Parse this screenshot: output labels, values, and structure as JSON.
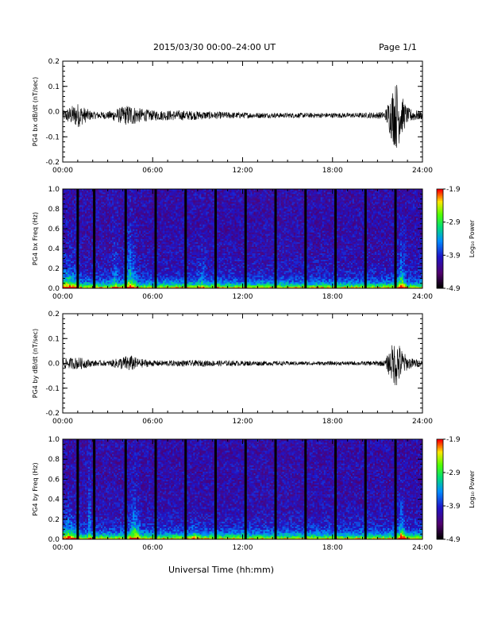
{
  "header": {
    "title": "2015/03/30  00:00–24:00 UT",
    "page": "Page 1/1"
  },
  "xlabel": "Universal Time (hh:mm)",
  "x_ticks": [
    "00:00",
    "06:00",
    "12:00",
    "18:00",
    "24:00"
  ],
  "colorbar": {
    "label": "Log₁₀ Power",
    "ticks": [
      "-1.9",
      "-2.9",
      "-3.9",
      "-4.9"
    ],
    "range": [
      -4.9,
      -1.9
    ]
  },
  "chart_data": [
    {
      "type": "line",
      "ylabel": "PG4 bx dB/dt (nT/sec)",
      "ylim": [
        -0.2,
        0.2
      ],
      "y_ticks": [
        "0.2",
        "0.1",
        "0.0",
        "-0.1",
        "-0.2"
      ],
      "xlim": [
        0,
        24
      ],
      "x": [
        0,
        1,
        1.5,
        2,
        3,
        4.5,
        5,
        6,
        8,
        10,
        12,
        14,
        16,
        18,
        20,
        21.5,
        22,
        22.3,
        22.6,
        23,
        24
      ],
      "envelope": [
        0.02,
        0.05,
        0.03,
        0.015,
        0.015,
        0.045,
        0.03,
        0.02,
        0.02,
        0.015,
        0.012,
        0.01,
        0.01,
        0.01,
        0.01,
        0.015,
        0.11,
        0.14,
        0.08,
        0.03,
        0.015
      ],
      "baseline": -0.015
    },
    {
      "type": "heatmap",
      "ylabel": "PG4 bx Freq (Hz)",
      "ylim": [
        0,
        1.0
      ],
      "y_ticks": [
        "1.0",
        "0.8",
        "0.6",
        "0.4",
        "0.2",
        "0.0"
      ],
      "xlim": [
        0,
        24
      ],
      "gap_hours": [
        1.0,
        2.1,
        4.2,
        6.2,
        8.2,
        10.2,
        12.2,
        14.2,
        16.2,
        18.2,
        20.2,
        22.2
      ],
      "bursts": [
        {
          "x": 0.4,
          "w": 0.9,
          "f": 0.35,
          "p": 1.0
        },
        {
          "x": 4.5,
          "w": 0.5,
          "f": 0.55,
          "p": 1.2
        },
        {
          "x": 3.5,
          "w": 0.3,
          "f": 0.7,
          "p": 0.6
        },
        {
          "x": 9.3,
          "w": 0.4,
          "f": 0.5,
          "p": 0.5
        },
        {
          "x": 10.3,
          "w": 0.3,
          "f": 0.25,
          "p": 0.4
        },
        {
          "x": 22.6,
          "w": 0.35,
          "f": 0.45,
          "p": 1.3
        }
      ]
    },
    {
      "type": "line",
      "ylabel": "PG4 by dB/dt (nT/sec)",
      "ylim": [
        -0.2,
        0.2
      ],
      "y_ticks": [
        "0.2",
        "0.1",
        "0.0",
        "-0.1",
        "-0.2"
      ],
      "xlim": [
        0,
        24
      ],
      "x": [
        0,
        1,
        1.5,
        2,
        3,
        4.5,
        5,
        6,
        8,
        10,
        12,
        14,
        16,
        18,
        20,
        21.5,
        22,
        22.3,
        22.6,
        23,
        24
      ],
      "envelope": [
        0.02,
        0.025,
        0.02,
        0.012,
        0.01,
        0.035,
        0.02,
        0.012,
        0.012,
        0.012,
        0.01,
        0.009,
        0.008,
        0.008,
        0.008,
        0.012,
        0.08,
        0.1,
        0.06,
        0.025,
        0.012
      ],
      "baseline": 0.0
    },
    {
      "type": "heatmap",
      "ylabel": "PG4 by Freq (Hz)",
      "ylim": [
        0,
        1.0
      ],
      "y_ticks": [
        "1.0",
        "0.8",
        "0.6",
        "0.4",
        "0.2",
        "0.0"
      ],
      "xlim": [
        0,
        24
      ],
      "gap_hours": [
        1.0,
        2.1,
        4.2,
        6.2,
        8.2,
        10.2,
        12.2,
        14.2,
        16.2,
        18.2,
        20.2,
        22.2
      ],
      "bursts": [
        {
          "x": 0.4,
          "w": 0.9,
          "f": 0.3,
          "p": 0.9
        },
        {
          "x": 1.8,
          "w": 0.08,
          "f": 1.0,
          "p": 1.5
        },
        {
          "x": 4.8,
          "w": 0.5,
          "f": 0.45,
          "p": 1.1
        },
        {
          "x": 8.8,
          "w": 0.4,
          "f": 0.2,
          "p": 0.5
        },
        {
          "x": 22.6,
          "w": 0.35,
          "f": 0.35,
          "p": 1.3
        }
      ]
    }
  ]
}
